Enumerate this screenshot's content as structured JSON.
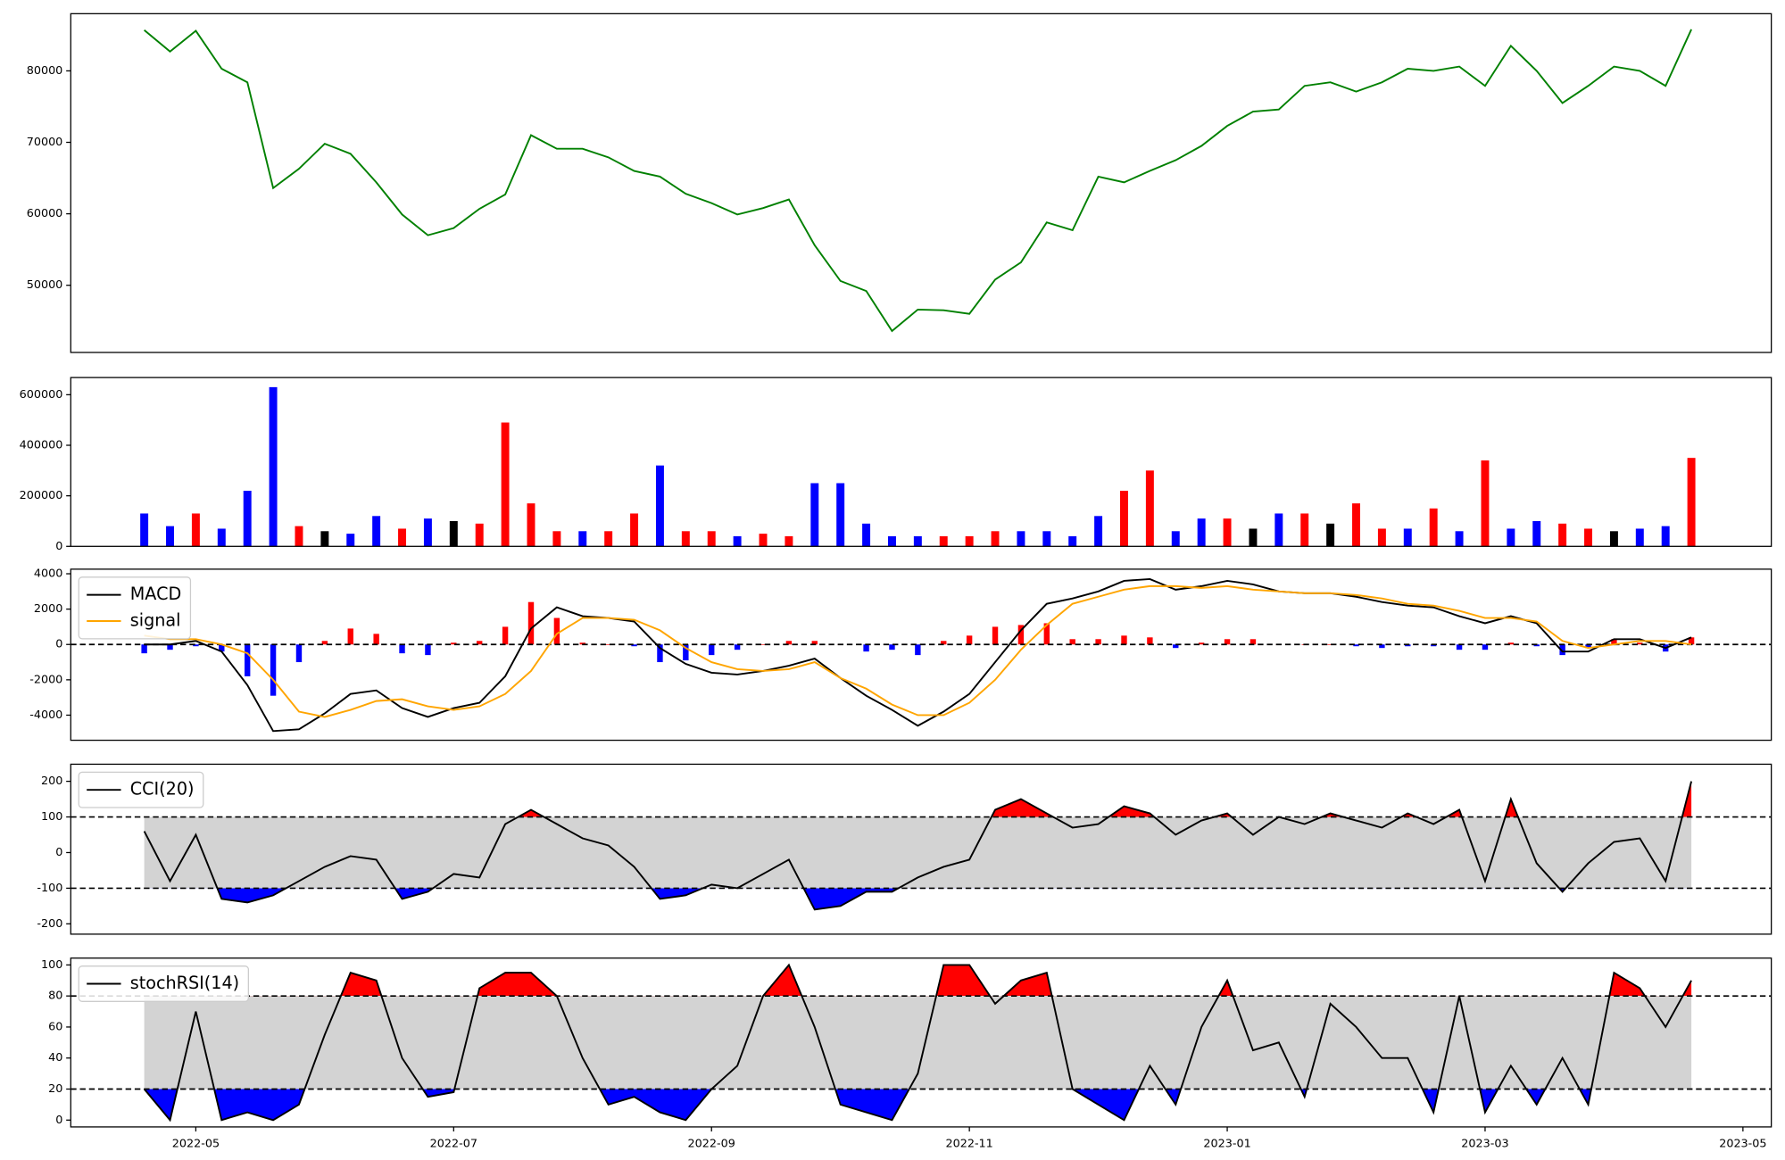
{
  "chart_data": [
    {
      "type": "line",
      "x": [
        3.6,
        3.8,
        4,
        4.2,
        4.4,
        4.6,
        4.8,
        5,
        5.2,
        5.4,
        5.6,
        5.8,
        6,
        6.2,
        6.4,
        6.6,
        6.8,
        7,
        7.2,
        7.4,
        7.6,
        7.8,
        8,
        8.2,
        8.4,
        8.6,
        8.8,
        9,
        9.2,
        9.4,
        9.6,
        9.8,
        10,
        10.2,
        10.4,
        10.6,
        10.8,
        11,
        11.2,
        11.4,
        11.6,
        11.8,
        12,
        12.2,
        12.4,
        12.6,
        12.8,
        13,
        13.2,
        13.4,
        13.6,
        13.8,
        14,
        14.2,
        14.4,
        14.6,
        14.8,
        15,
        15.2,
        15.4,
        15.6
      ],
      "values": [
        85700,
        82700,
        85600,
        80300,
        78400,
        63600,
        66300,
        69800,
        68400,
        64400,
        59900,
        57000,
        58000,
        60700,
        62700,
        71000,
        69100,
        69100,
        67900,
        66000,
        65200,
        62800,
        61500,
        59900,
        60800,
        62000,
        55600,
        50600,
        49200,
        43600,
        46600,
        46500,
        46000,
        50800,
        53200,
        58800,
        57700,
        65200,
        64400,
        66000,
        67500,
        69500,
        72300,
        74300,
        74600,
        77900,
        78400,
        77100,
        78400,
        80300,
        80000,
        80600,
        77900,
        83500,
        80000,
        75500,
        77900,
        80600,
        80000,
        77900,
        85800
      ],
      "color": "green",
      "xlim": [
        3.03,
        16.22
      ],
      "ylim": [
        40600,
        88000
      ],
      "yticks": [
        50000,
        60000,
        70000,
        80000
      ]
    },
    {
      "type": "bar",
      "x": [
        3.6,
        3.8,
        4,
        4.2,
        4.4,
        4.6,
        4.8,
        5,
        5.2,
        5.4,
        5.6,
        5.8,
        6,
        6.2,
        6.4,
        6.6,
        6.8,
        7,
        7.2,
        7.4,
        7.6,
        7.8,
        8,
        8.2,
        8.4,
        8.6,
        8.8,
        9,
        9.2,
        9.4,
        9.6,
        9.8,
        10,
        10.2,
        10.4,
        10.6,
        10.8,
        11,
        11.2,
        11.4,
        11.6,
        11.8,
        12,
        12.2,
        12.4,
        12.6,
        12.8,
        13,
        13.2,
        13.4,
        13.6,
        13.8,
        14,
        14.2,
        14.4,
        14.6,
        14.8,
        15,
        15.2,
        15.4,
        15.6
      ],
      "values": [
        130000,
        80000,
        130000,
        70000,
        220000,
        630000,
        80000,
        60000,
        50000,
        120000,
        70000,
        110000,
        100000,
        90000,
        490000,
        170000,
        60000,
        60000,
        60000,
        130000,
        320000,
        60000,
        60000,
        40000,
        50000,
        40000,
        250000,
        250000,
        90000,
        40000,
        40000,
        40000,
        40000,
        60000,
        60000,
        60000,
        40000,
        120000,
        220000,
        300000,
        60000,
        110000,
        110000,
        70000,
        130000,
        130000,
        90000,
        170000,
        70000,
        70000,
        150000,
        60000,
        340000,
        70000,
        100000,
        90000,
        70000,
        60000,
        70000,
        80000,
        350000
      ],
      "colors": [
        "blue",
        "blue",
        "red",
        "blue",
        "blue",
        "blue",
        "red",
        "black",
        "blue",
        "blue",
        "red",
        "blue",
        "black",
        "red",
        "red",
        "red",
        "red",
        "blue",
        "red",
        "red",
        "blue",
        "red",
        "red",
        "blue",
        "red",
        "red",
        "blue",
        "blue",
        "blue",
        "blue",
        "blue",
        "red",
        "red",
        "red",
        "blue",
        "blue",
        "blue",
        "blue",
        "red",
        "red",
        "blue",
        "blue",
        "red",
        "black",
        "blue",
        "red",
        "black",
        "red",
        "red",
        "blue",
        "red",
        "blue",
        "red",
        "blue",
        "blue",
        "red",
        "red",
        "black",
        "blue",
        "blue",
        "red"
      ],
      "xlim": [
        3.03,
        16.22
      ],
      "ylim": [
        0,
        668000
      ],
      "yticks": [
        0,
        200000,
        400000,
        600000
      ]
    },
    {
      "type": "line",
      "x": [
        3.6,
        3.8,
        4,
        4.2,
        4.4,
        4.6,
        4.8,
        5,
        5.2,
        5.4,
        5.6,
        5.8,
        6,
        6.2,
        6.4,
        6.6,
        6.8,
        7,
        7.2,
        7.4,
        7.6,
        7.8,
        8,
        8.2,
        8.4,
        8.6,
        8.8,
        9,
        9.2,
        9.4,
        9.6,
        9.8,
        10,
        10.2,
        10.4,
        10.6,
        10.8,
        11,
        11.2,
        11.4,
        11.6,
        11.8,
        12,
        12.2,
        12.4,
        12.6,
        12.8,
        13,
        13.2,
        13.4,
        13.6,
        13.8,
        14,
        14.2,
        14.4,
        14.6,
        14.8,
        15,
        15.2,
        15.4,
        15.6
      ],
      "series": [
        {
          "name": "MACD",
          "color": "black",
          "values": [
            0,
            0,
            200,
            -400,
            -2300,
            -4900,
            -4800,
            -3900,
            -2800,
            -2600,
            -3600,
            -4100,
            -3600,
            -3300,
            -1800,
            900,
            2100,
            1600,
            1500,
            1300,
            -200,
            -1100,
            -1600,
            -1700,
            -1500,
            -1200,
            -800,
            -1900,
            -2900,
            -3700,
            -4600,
            -3800,
            -2800,
            -1000,
            800,
            2300,
            2600,
            3000,
            3600,
            3700,
            3100,
            3300,
            3600,
            3400,
            3000,
            2900,
            2900,
            2700,
            2400,
            2200,
            2100,
            1600,
            1200,
            1600,
            1200,
            -400,
            -400,
            300,
            300,
            -200,
            400
          ]
        },
        {
          "name": "signal",
          "color": "orange",
          "values": [
            500,
            300,
            300,
            0,
            -500,
            -2000,
            -3800,
            -4100,
            -3700,
            -3200,
            -3100,
            -3500,
            -3700,
            -3500,
            -2800,
            -1500,
            600,
            1500,
            1500,
            1400,
            800,
            -200,
            -1000,
            -1400,
            -1500,
            -1400,
            -1000,
            -1900,
            -2500,
            -3400,
            -4000,
            -4000,
            -3300,
            -2000,
            -300,
            1100,
            2300,
            2700,
            3100,
            3300,
            3300,
            3200,
            3300,
            3100,
            3000,
            2900,
            2900,
            2800,
            2600,
            2300,
            2200,
            1900,
            1500,
            1500,
            1300,
            200,
            -200,
            0,
            200,
            200,
            0
          ]
        }
      ],
      "histogram": {
        "up_color": "red",
        "down_color": "blue",
        "values": [
          -500,
          -300,
          -100,
          -400,
          -1800,
          -2900,
          -1000,
          200,
          900,
          600,
          -500,
          -600,
          100,
          200,
          1000,
          2400,
          1500,
          100,
          0,
          -100,
          -1000,
          -900,
          -600,
          -300,
          0,
          200,
          200,
          0,
          -400,
          -300,
          -600,
          200,
          500,
          1000,
          1100,
          1200,
          300,
          300,
          500,
          400,
          -200,
          100,
          300,
          300,
          0,
          0,
          0,
          -100,
          -200,
          -100,
          -100,
          -300,
          -300,
          100,
          -100,
          -600,
          -200,
          300,
          100,
          -400,
          400
        ]
      },
      "zero_line": true,
      "legend": "upper left",
      "xlim": [
        3.03,
        16.22
      ],
      "ylim": [
        -5420,
        4260
      ],
      "yticks": [
        -4000,
        -2000,
        0,
        2000,
        4000
      ]
    },
    {
      "type": "line",
      "x": [
        3.6,
        3.8,
        4,
        4.2,
        4.4,
        4.6,
        4.8,
        5,
        5.2,
        5.4,
        5.6,
        5.8,
        6,
        6.2,
        6.4,
        6.6,
        6.8,
        7,
        7.2,
        7.4,
        7.6,
        7.8,
        8,
        8.2,
        8.4,
        8.6,
        8.8,
        9,
        9.2,
        9.4,
        9.6,
        9.8,
        10,
        10.2,
        10.4,
        10.6,
        10.8,
        11,
        11.2,
        11.4,
        11.6,
        11.8,
        12,
        12.2,
        12.4,
        12.6,
        12.8,
        13,
        13.2,
        13.4,
        13.6,
        13.8,
        14,
        14.2,
        14.4,
        14.6,
        14.8,
        15,
        15.2,
        15.4,
        15.6
      ],
      "series": [
        {
          "name": "CCI(20)",
          "color": "black",
          "values": [
            60,
            -80,
            50,
            -130,
            -140,
            -120,
            -80,
            -40,
            -10,
            -20,
            -130,
            -110,
            -60,
            -70,
            80,
            120,
            80,
            40,
            20,
            -40,
            -130,
            -120,
            -90,
            -100,
            -60,
            -20,
            -160,
            -150,
            -110,
            -110,
            -70,
            -40,
            -20,
            120,
            150,
            110,
            70,
            80,
            130,
            110,
            50,
            90,
            110,
            50,
            100,
            80,
            110,
            90,
            70,
            110,
            80,
            120,
            -80,
            150,
            -30,
            -110,
            -30,
            30,
            40,
            -80,
            200
          ]
        }
      ],
      "levels": [
        100,
        -100
      ],
      "fill_colors": {
        "above": "red",
        "below": "blue",
        "band": "lightgray"
      },
      "legend": "upper left",
      "xlim": [
        3.03,
        16.22
      ],
      "ylim": [
        -229,
        248
      ],
      "yticks": [
        -200,
        -100,
        0,
        100,
        200
      ]
    },
    {
      "type": "line",
      "x": [
        3.6,
        3.8,
        4,
        4.2,
        4.4,
        4.6,
        4.8,
        5,
        5.2,
        5.4,
        5.6,
        5.8,
        6,
        6.2,
        6.4,
        6.6,
        6.8,
        7,
        7.2,
        7.4,
        7.6,
        7.8,
        8,
        8.2,
        8.4,
        8.6,
        8.8,
        9,
        9.2,
        9.4,
        9.6,
        9.8,
        10,
        10.2,
        10.4,
        10.6,
        10.8,
        11,
        11.2,
        11.4,
        11.6,
        11.8,
        12,
        12.2,
        12.4,
        12.6,
        12.8,
        13,
        13.2,
        13.4,
        13.6,
        13.8,
        14,
        14.2,
        14.4,
        14.6,
        14.8,
        15,
        15.2,
        15.4,
        15.6
      ],
      "series": [
        {
          "name": "stochRSI(14)",
          "color": "black",
          "values": [
            20,
            0,
            70,
            0,
            5,
            0,
            10,
            55,
            95,
            90,
            40,
            15,
            18,
            85,
            95,
            95,
            80,
            40,
            10,
            15,
            5,
            0,
            20,
            35,
            80,
            100,
            60,
            10,
            5,
            0,
            30,
            100,
            100,
            75,
            90,
            95,
            20,
            10,
            0,
            35,
            10,
            60,
            90,
            45,
            50,
            15,
            75,
            60,
            40,
            40,
            5,
            80,
            5,
            35,
            10,
            40,
            10,
            95,
            85,
            60,
            90
          ]
        }
      ],
      "levels": [
        80,
        20
      ],
      "fill_colors": {
        "above": "red",
        "below": "blue",
        "band": "lightgray"
      },
      "legend": "upper left",
      "xlim": [
        3.03,
        16.22
      ],
      "ylim": [
        -4.4,
        104.4
      ],
      "yticks": [
        0,
        20,
        40,
        60,
        80,
        100
      ],
      "xticks": [
        {
          "value": 4,
          "label": "2022-05"
        },
        {
          "value": 6,
          "label": "2022-07"
        },
        {
          "value": 8,
          "label": "2022-09"
        },
        {
          "value": 10,
          "label": "2022-11"
        },
        {
          "value": 12,
          "label": "2023-01"
        },
        {
          "value": 14,
          "label": "2023-03"
        },
        {
          "value": 16,
          "label": "2023-05"
        }
      ]
    }
  ]
}
